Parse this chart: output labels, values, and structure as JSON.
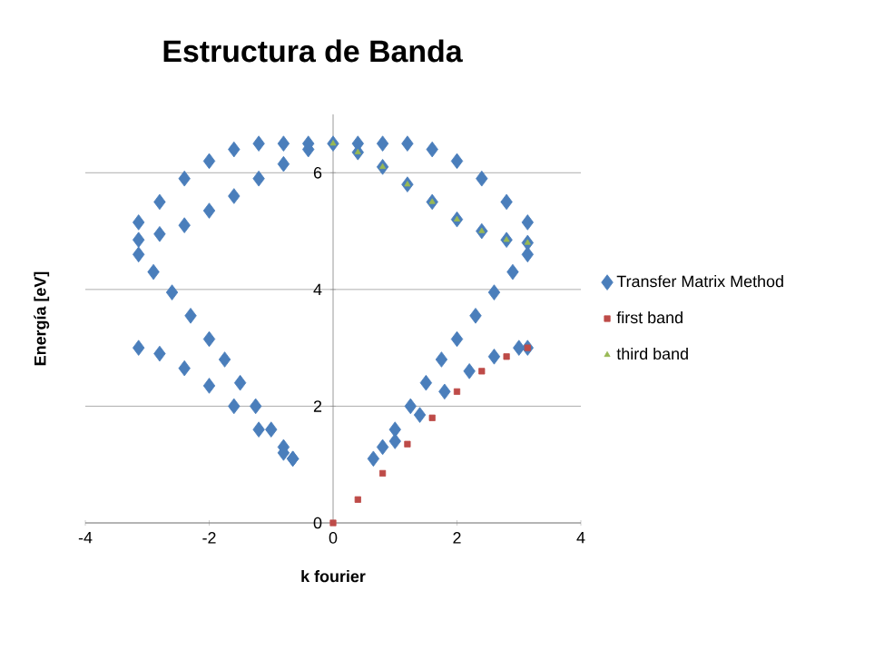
{
  "chart_data": {
    "type": "scatter",
    "title": "Estructura de Banda",
    "xlabel": "k fourier",
    "ylabel": "Energía [eV]",
    "xlim": [
      -4,
      4
    ],
    "xticks": [
      -4,
      -2,
      0,
      2,
      4
    ],
    "ylim": [
      0,
      7
    ],
    "yticks": [
      0,
      2,
      4,
      6
    ],
    "grid": "y",
    "legend": "right",
    "series": [
      {
        "name": "Transfer Matrix Method",
        "color": "#4a7ebb",
        "marker": "diamond",
        "x": [
          -3.14,
          -2.8,
          -2.4,
          -2.0,
          -1.6,
          -1.2,
          -0.8,
          -0.4,
          0,
          -3.14,
          -2.8,
          -2.4,
          -2.0,
          -1.6,
          -1.2,
          -0.8,
          -0.4,
          -3.14,
          -2.9,
          -2.6,
          -2.3,
          -2.0,
          -1.75,
          -1.5,
          -1.25,
          -1.0,
          -0.8,
          -0.65,
          -3.14,
          -2.8,
          -2.4,
          -2.0,
          -1.6,
          -1.2,
          -0.8,
          -0.65,
          0.65,
          0.8,
          1.0,
          1.25,
          1.5,
          1.75,
          2.0,
          2.3,
          2.6,
          2.9,
          3.14,
          1.0,
          1.4,
          1.8,
          2.2,
          2.6,
          3.0,
          3.14,
          0.4,
          0.8,
          1.2,
          1.6,
          2.0,
          2.4,
          2.8,
          3.14,
          0.4,
          0.8,
          1.2,
          1.6,
          2.0,
          2.4,
          2.8,
          3.14
        ],
        "values": [
          4.85,
          4.95,
          5.1,
          5.35,
          5.6,
          5.9,
          6.15,
          6.4,
          6.5,
          5.15,
          5.5,
          5.9,
          6.2,
          6.4,
          6.5,
          6.5,
          6.5,
          4.6,
          4.3,
          3.95,
          3.55,
          3.15,
          2.8,
          2.4,
          2.0,
          1.6,
          1.3,
          1.1,
          3.0,
          2.9,
          2.65,
          2.35,
          2.0,
          1.6,
          1.2,
          1.1,
          1.1,
          1.3,
          1.6,
          2.0,
          2.4,
          2.8,
          3.15,
          3.55,
          3.95,
          4.3,
          4.6,
          1.4,
          1.85,
          2.25,
          2.6,
          2.85,
          3.0,
          3.0,
          6.5,
          6.5,
          6.5,
          6.4,
          6.2,
          5.9,
          5.5,
          5.15,
          6.35,
          6.1,
          5.8,
          5.5,
          5.2,
          5.0,
          4.85,
          4.8
        ]
      },
      {
        "name": "first band",
        "color": "#be4b48",
        "marker": "square",
        "x": [
          0,
          0.4,
          0.8,
          1.2,
          1.6,
          2.0,
          2.4,
          2.8,
          3.14
        ],
        "values": [
          0,
          0.4,
          0.85,
          1.35,
          1.8,
          2.25,
          2.6,
          2.85,
          3.0
        ]
      },
      {
        "name": "third band",
        "color": "#98b954",
        "marker": "triangle",
        "x": [
          0,
          0.4,
          0.8,
          1.2,
          1.6,
          2.0,
          2.4,
          2.8,
          3.14
        ],
        "values": [
          6.5,
          6.35,
          6.1,
          5.8,
          5.5,
          5.2,
          5.0,
          4.85,
          4.8
        ]
      }
    ]
  }
}
